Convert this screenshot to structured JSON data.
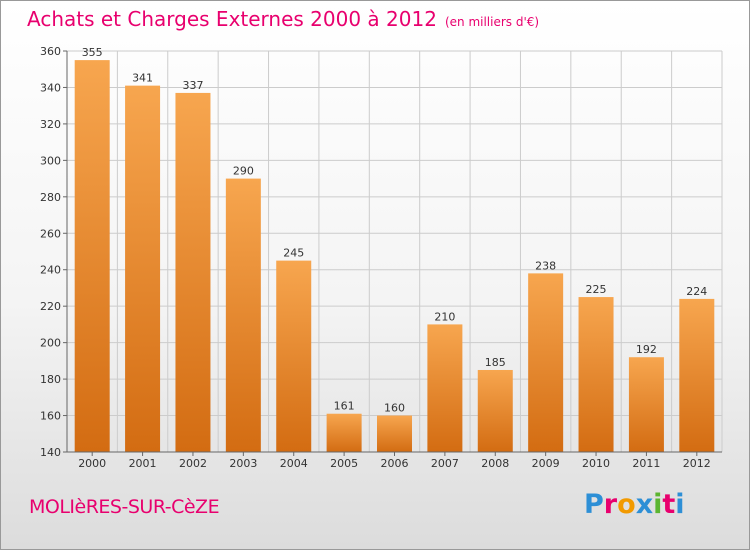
{
  "title": "Achats et Charges Externes 2000 à 2012",
  "subtitle": "(en milliers d'€)",
  "commune": "MOLIèRES-SUR-CèZE",
  "brand": {
    "letters": [
      "P",
      "r",
      "o",
      "x",
      "i",
      "t",
      "i"
    ],
    "colors": [
      "#2d8fd6",
      "#e8006e",
      "#f29a00",
      "#2d8fd6",
      "#5cb531",
      "#e8006e",
      "#2d8fd6"
    ]
  },
  "colors": {
    "accent": "#e8006e",
    "bar_top": "#f7a64f",
    "bar_bottom": "#d36c12",
    "grid": "#cccccc"
  },
  "chart_data": {
    "type": "bar",
    "title": "Achats et Charges Externes 2000 à 2012",
    "ylabel": "en milliers d'€",
    "xlabel": "",
    "categories": [
      "2000",
      "2001",
      "2002",
      "2003",
      "2004",
      "2005",
      "2006",
      "2007",
      "2008",
      "2009",
      "2010",
      "2011",
      "2012"
    ],
    "values": [
      355,
      341,
      337,
      290,
      245,
      161,
      160,
      210,
      185,
      238,
      225,
      192,
      224
    ],
    "ylim": [
      140,
      360
    ],
    "yticks": [
      140,
      160,
      180,
      200,
      220,
      240,
      260,
      280,
      300,
      320,
      340,
      360
    ],
    "grid": true,
    "legend": "none"
  }
}
